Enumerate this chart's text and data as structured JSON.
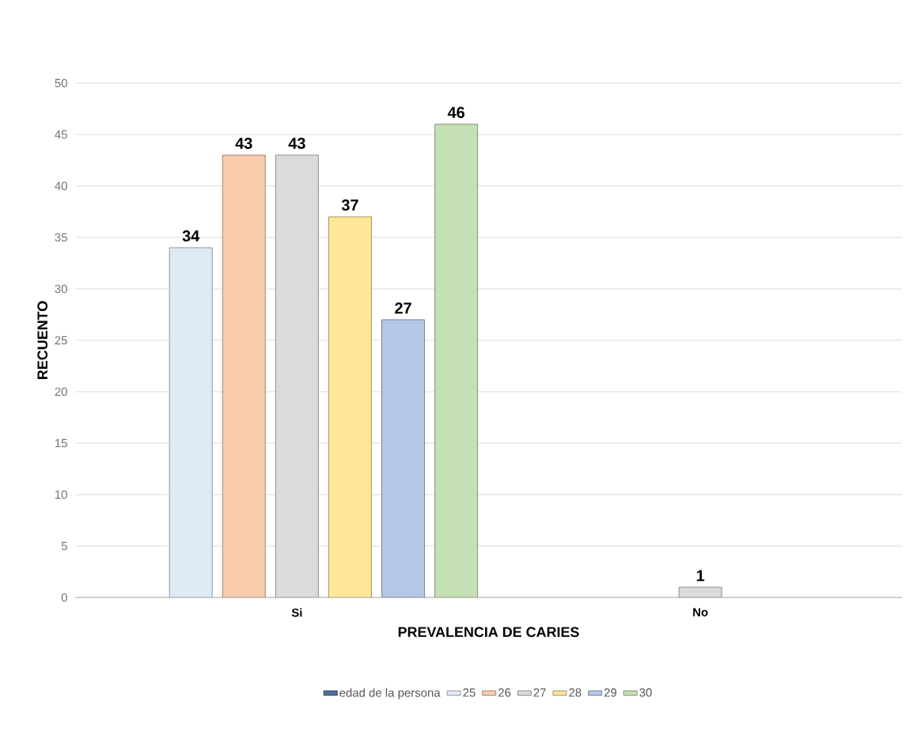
{
  "chart_data": {
    "type": "bar",
    "xlabel": "PREVALENCIA DE CARIES",
    "ylabel": "RECUENTO",
    "categories": [
      "Si",
      "No"
    ],
    "series": [
      {
        "name": "edad de la persona",
        "color": "#4f6f99",
        "values": [
          null,
          null
        ]
      },
      {
        "name": "25",
        "color": "#deebf7",
        "values": [
          34,
          null
        ]
      },
      {
        "name": "26",
        "color": "#f8cbad",
        "values": [
          43,
          null
        ]
      },
      {
        "name": "27",
        "color": "#dbdbdb",
        "values": [
          43,
          1
        ]
      },
      {
        "name": "28",
        "color": "#ffe699",
        "values": [
          37,
          null
        ]
      },
      {
        "name": "29",
        "color": "#b4c7e7",
        "values": [
          27,
          null
        ]
      },
      {
        "name": "30",
        "color": "#c5e0b4",
        "values": [
          46,
          null
        ]
      }
    ],
    "ylim": [
      0,
      50
    ],
    "yticks": [
      0,
      5,
      10,
      15,
      20,
      25,
      30,
      35,
      40,
      45,
      50
    ],
    "grid": "y",
    "legend": "bottom",
    "data_labels": true
  }
}
